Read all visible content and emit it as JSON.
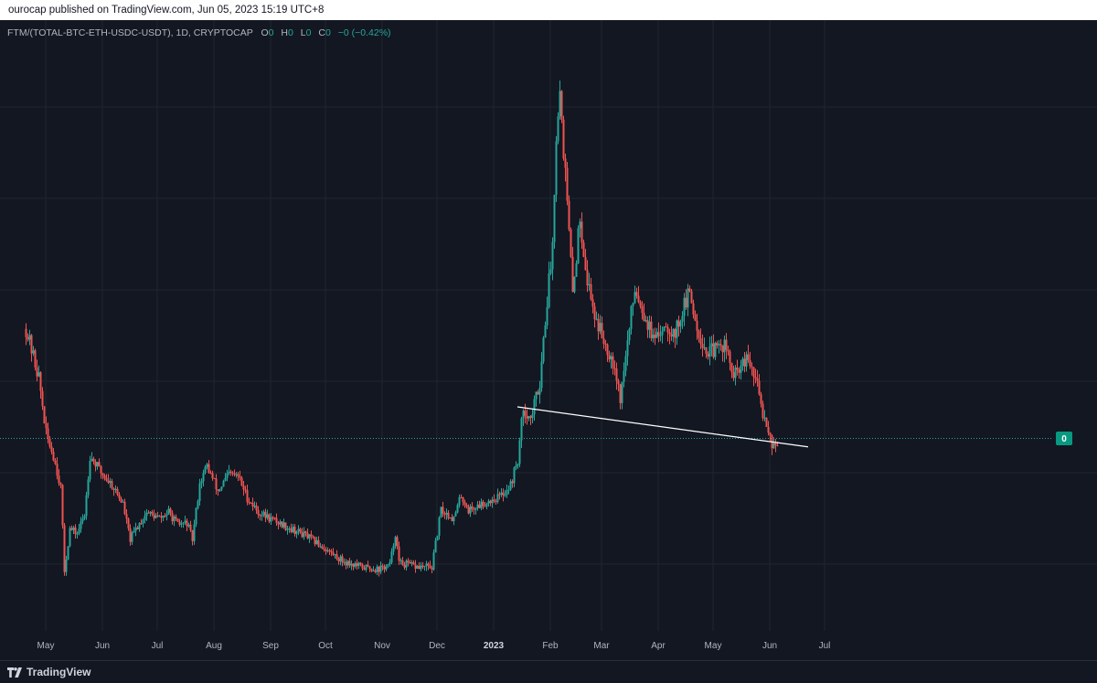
{
  "header": {
    "published": "ourocap published on TradingView.com, Jun 05, 2023 15:19 UTC+8"
  },
  "legend": {
    "symbol": "FTM/(TOTAL-BTC-ETH-USDC-USDT), 1D, CRYPTOCAP",
    "o_label": "O",
    "o_value": "0",
    "h_label": "H",
    "h_value": "0",
    "l_label": "L",
    "l_value": "0",
    "c_label": "C",
    "c_value": "0",
    "change": "−0 (−0.42%)"
  },
  "price_label": "0",
  "brand": {
    "name": "TradingView",
    "logo_icon": "tradingview-logo-icon"
  },
  "colors": {
    "background": "#131722",
    "up": "#26a69a",
    "down": "#ef5350",
    "grid": "#1f2430",
    "axis_text": "#b2b5be",
    "trendline": "#ffffff",
    "price_line": "#26a69a"
  },
  "chart_data": {
    "type": "candlestick",
    "title": "",
    "xlabel": "",
    "ylabel": "",
    "x_ticks": [
      "May",
      "Jun",
      "Jul",
      "Aug",
      "Sep",
      "Oct",
      "Nov",
      "Dec",
      "2023",
      "Feb",
      "Mar",
      "Apr",
      "May",
      "Jun",
      "Jul"
    ],
    "y_scale": "relative (price axis unlabeled)",
    "grid": true,
    "date_range": [
      "2022-04-20",
      "2023-06-05"
    ],
    "close_path": [
      {
        "date": "2022-04-20",
        "v": 1.05
      },
      {
        "date": "2022-04-27",
        "v": 0.82
      },
      {
        "date": "2022-05-01",
        "v": 0.55
      },
      {
        "date": "2022-05-05",
        "v": 0.45
      },
      {
        "date": "2022-05-09",
        "v": 0.3
      },
      {
        "date": "2022-05-11",
        "v": -0.1
      },
      {
        "date": "2022-05-14",
        "v": 0.1
      },
      {
        "date": "2022-05-18",
        "v": 0.08
      },
      {
        "date": "2022-05-22",
        "v": 0.17
      },
      {
        "date": "2022-05-25",
        "v": 0.45
      },
      {
        "date": "2022-05-31",
        "v": 0.37
      },
      {
        "date": "2022-06-06",
        "v": 0.31
      },
      {
        "date": "2022-06-12",
        "v": 0.22
      },
      {
        "date": "2022-06-16",
        "v": 0.05
      },
      {
        "date": "2022-06-19",
        "v": 0.1
      },
      {
        "date": "2022-06-25",
        "v": 0.18
      },
      {
        "date": "2022-07-02",
        "v": 0.15
      },
      {
        "date": "2022-07-07",
        "v": 0.18
      },
      {
        "date": "2022-07-12",
        "v": 0.12
      },
      {
        "date": "2022-07-17",
        "v": 0.13
      },
      {
        "date": "2022-07-20",
        "v": 0.05
      },
      {
        "date": "2022-07-24",
        "v": 0.32
      },
      {
        "date": "2022-07-28",
        "v": 0.4
      },
      {
        "date": "2022-08-03",
        "v": 0.28
      },
      {
        "date": "2022-08-09",
        "v": 0.36
      },
      {
        "date": "2022-08-14",
        "v": 0.35
      },
      {
        "date": "2022-08-19",
        "v": 0.25
      },
      {
        "date": "2022-08-25",
        "v": 0.18
      },
      {
        "date": "2022-09-03",
        "v": 0.14
      },
      {
        "date": "2022-09-10",
        "v": 0.11
      },
      {
        "date": "2022-09-20",
        "v": 0.07
      },
      {
        "date": "2022-09-30",
        "v": 0.01
      },
      {
        "date": "2022-10-10",
        "v": -0.05
      },
      {
        "date": "2022-10-20",
        "v": -0.08
      },
      {
        "date": "2022-10-30",
        "v": -0.09
      },
      {
        "date": "2022-11-05",
        "v": -0.07
      },
      {
        "date": "2022-11-08",
        "v": 0.08
      },
      {
        "date": "2022-11-10",
        "v": -0.06
      },
      {
        "date": "2022-11-20",
        "v": -0.08
      },
      {
        "date": "2022-11-28",
        "v": -0.08
      },
      {
        "date": "2022-11-30",
        "v": 0.03
      },
      {
        "date": "2022-12-03",
        "v": 0.19
      },
      {
        "date": "2022-12-10",
        "v": 0.15
      },
      {
        "date": "2022-12-14",
        "v": 0.26
      },
      {
        "date": "2022-12-18",
        "v": 0.19
      },
      {
        "date": "2022-12-28",
        "v": 0.23
      },
      {
        "date": "2023-01-05",
        "v": 0.26
      },
      {
        "date": "2023-01-10",
        "v": 0.31
      },
      {
        "date": "2023-01-14",
        "v": 0.43
      },
      {
        "date": "2023-01-17",
        "v": 0.68
      },
      {
        "date": "2023-01-21",
        "v": 0.62
      },
      {
        "date": "2023-01-26",
        "v": 0.8
      },
      {
        "date": "2023-01-29",
        "v": 1.1
      },
      {
        "date": "2023-02-02",
        "v": 1.45
      },
      {
        "date": "2023-02-04",
        "v": 2.0
      },
      {
        "date": "2023-02-06",
        "v": 2.18
      },
      {
        "date": "2023-02-09",
        "v": 1.78
      },
      {
        "date": "2023-02-13",
        "v": 1.22
      },
      {
        "date": "2023-02-17",
        "v": 1.58
      },
      {
        "date": "2023-02-21",
        "v": 1.28
      },
      {
        "date": "2023-02-25",
        "v": 1.12
      },
      {
        "date": "2023-03-01",
        "v": 1.02
      },
      {
        "date": "2023-03-08",
        "v": 0.88
      },
      {
        "date": "2023-03-11",
        "v": 0.72
      },
      {
        "date": "2023-03-14",
        "v": 0.92
      },
      {
        "date": "2023-03-19",
        "v": 1.25
      },
      {
        "date": "2023-03-25",
        "v": 1.1
      },
      {
        "date": "2023-03-30",
        "v": 0.98
      },
      {
        "date": "2023-04-04",
        "v": 1.08
      },
      {
        "date": "2023-04-10",
        "v": 1.03
      },
      {
        "date": "2023-04-15",
        "v": 1.16
      },
      {
        "date": "2023-04-18",
        "v": 1.22
      },
      {
        "date": "2023-04-22",
        "v": 1.06
      },
      {
        "date": "2023-04-27",
        "v": 0.94
      },
      {
        "date": "2023-05-03",
        "v": 0.95
      },
      {
        "date": "2023-05-07",
        "v": 0.98
      },
      {
        "date": "2023-05-12",
        "v": 0.82
      },
      {
        "date": "2023-05-17",
        "v": 0.88
      },
      {
        "date": "2023-05-20",
        "v": 0.9
      },
      {
        "date": "2023-05-25",
        "v": 0.78
      },
      {
        "date": "2023-05-28",
        "v": 0.65
      },
      {
        "date": "2023-05-31",
        "v": 0.58
      },
      {
        "date": "2023-06-02",
        "v": 0.5
      },
      {
        "date": "2023-06-05",
        "v": 0.51
      }
    ],
    "trendline": {
      "start": {
        "date": "2023-01-14",
        "v": 0.68
      },
      "end": {
        "date": "2023-06-22",
        "v": 0.49
      }
    },
    "last_price_line": 0.53
  }
}
